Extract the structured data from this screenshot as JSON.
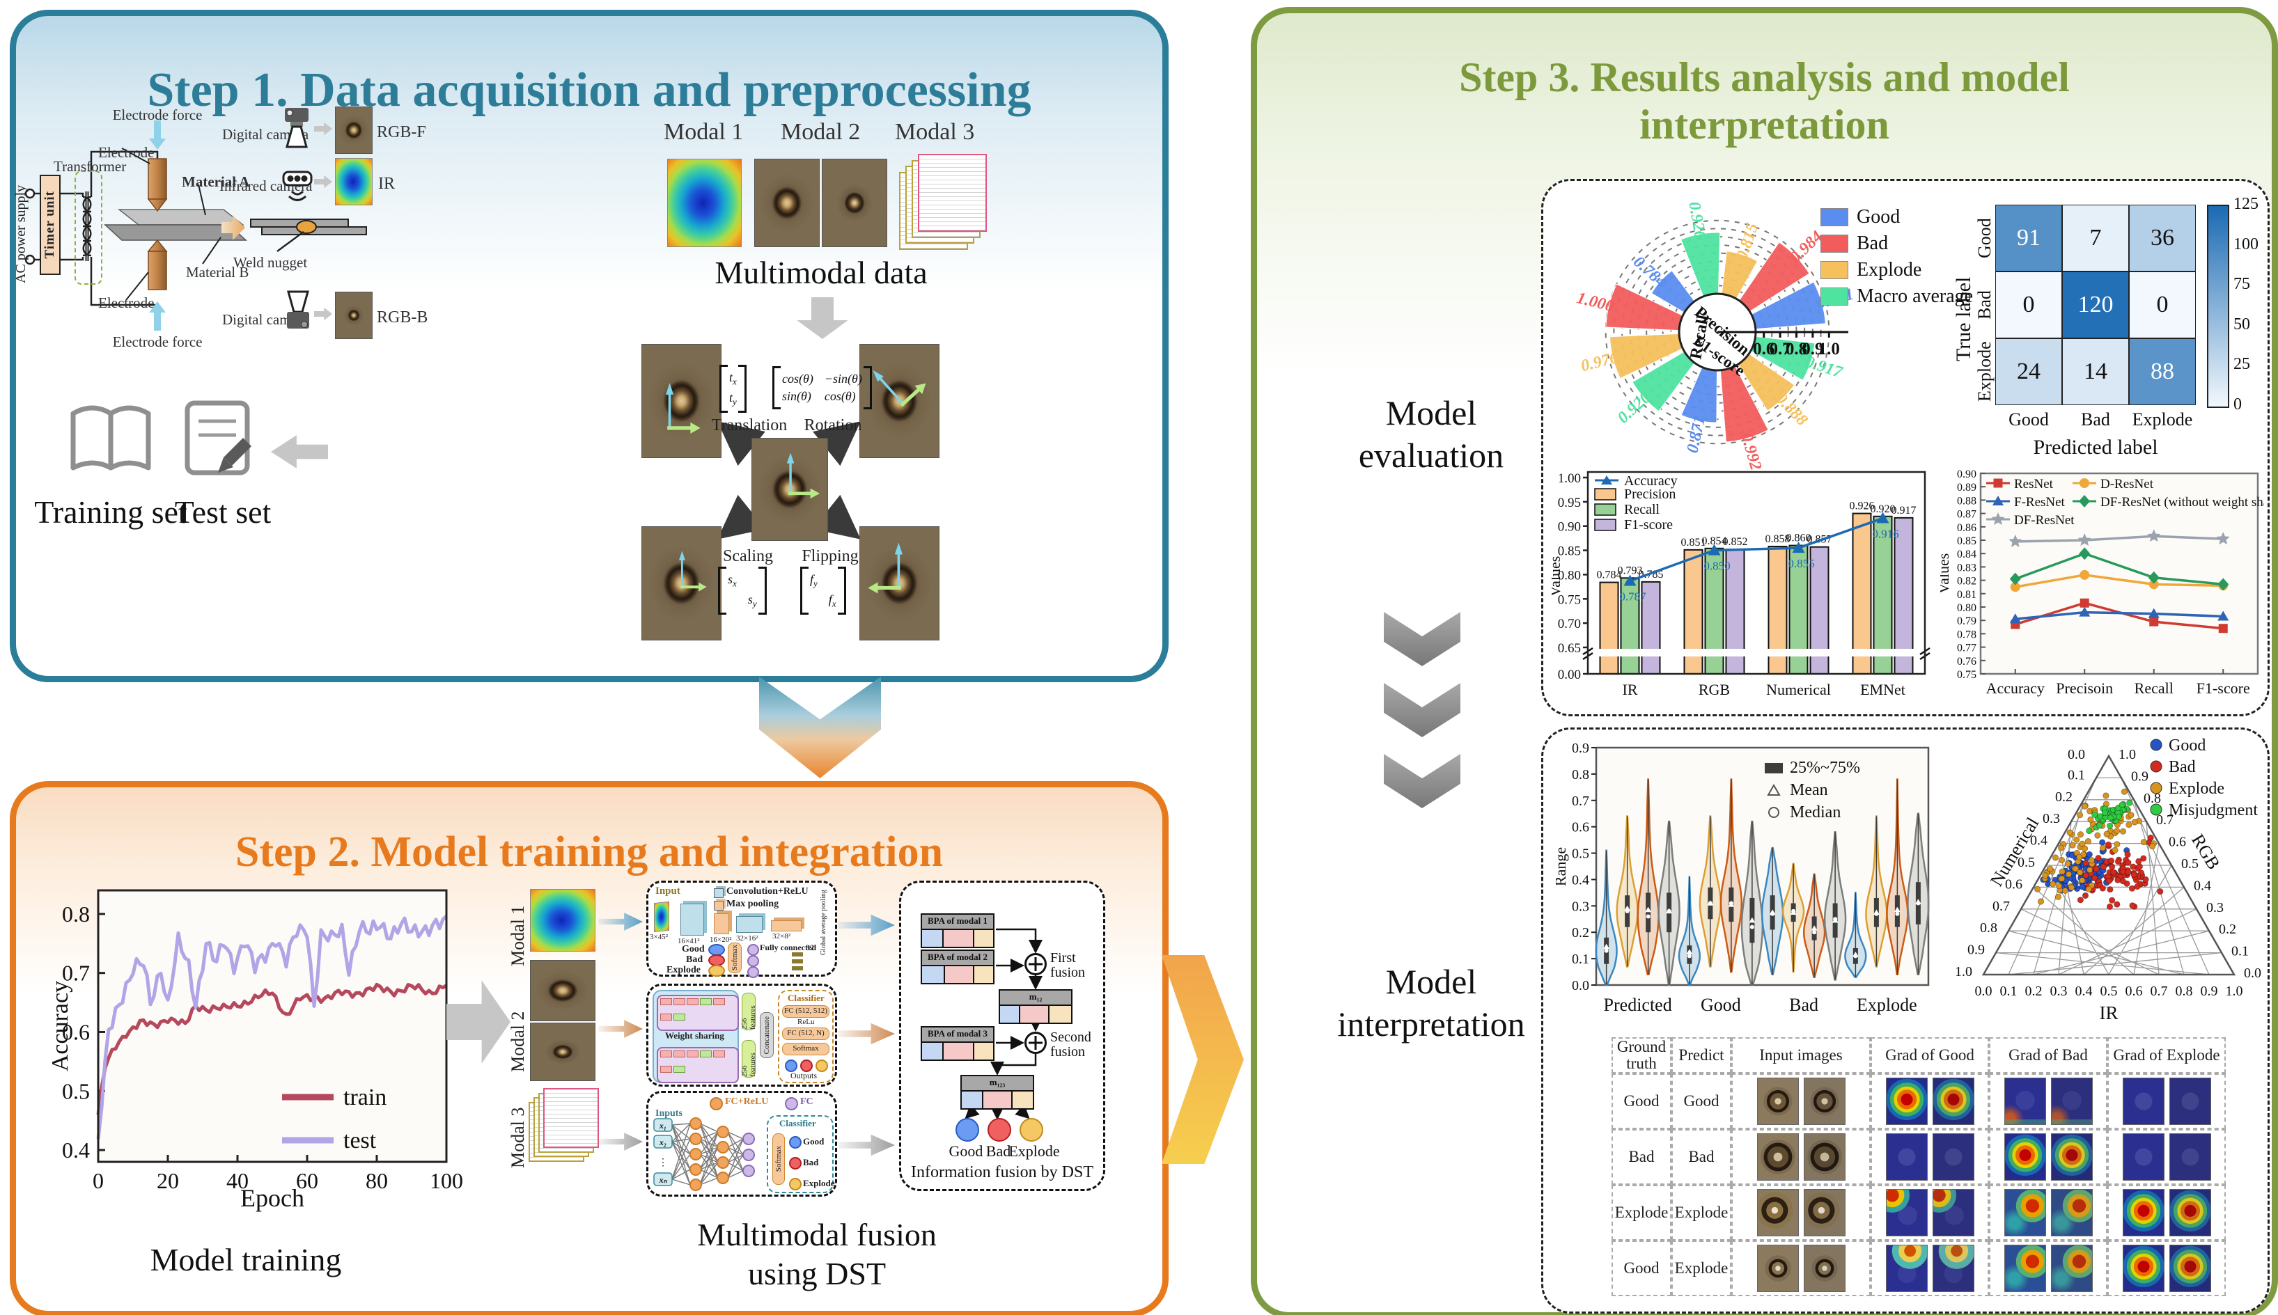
{
  "colors": {
    "step1_accent": "#2b7e99",
    "step2_accent": "#e87a1e",
    "step3_accent": "#7c9a3c",
    "good": "#5b8df0",
    "bad": "#f25c5c",
    "explode": "#f6c05c",
    "macro_average": "#4fe3a0",
    "train": "#b5485d",
    "test": "#b2a4e6"
  },
  "step1": {
    "title": "Step 1. Data acquisition and preprocessing",
    "schematic": {
      "electrode_force_top": "Electrode force",
      "electrode_top": "Electrode",
      "transformer": "Transformer",
      "timer_unit": "Timer unit",
      "ac_power": "AC power supply",
      "material_a": "Material A",
      "material_b": "Material B",
      "electrode_bottom": "Electrode",
      "electrode_force_bottom": "Electrode force",
      "weld_nugget": "Weld nugget"
    },
    "cameras": [
      {
        "label": "Digital camera",
        "output": "RGB-F"
      },
      {
        "label": "Infrared camera",
        "output": "IR"
      },
      {
        "label": "Digital camera",
        "output": "RGB-B"
      }
    ],
    "modal1": "Modal 1",
    "modal2": "Modal 2",
    "modal3": "Modal 3",
    "multimodal_caption": "Multimodal data",
    "augmentation": {
      "translation_label": "Translation",
      "rotation_label": "Rotation",
      "scaling_label": "Scaling",
      "flipping_label": "Flipping",
      "translation_cells": [
        {
          "b": "t",
          "s": "x"
        },
        {
          "b": "t",
          "s": "y"
        }
      ],
      "rotation_cells": [
        "cos(θ)",
        "−sin(θ)",
        "sin(θ)",
        "cos(θ)"
      ],
      "scaling_cells": [
        {
          "b": "s",
          "s": "x"
        },
        {
          "b": "s",
          "s": "y"
        }
      ],
      "flipping_cells": [
        {
          "b": "f",
          "s": "y"
        },
        {
          "b": "f",
          "s": "x"
        }
      ]
    },
    "training_set": "Training set",
    "test_set": "Test set"
  },
  "step2": {
    "title": "Step 2. Model training and integration",
    "model_training_caption": "Model training",
    "fusion_caption_line1": "Multimodal fusion",
    "fusion_caption_line2": "using DST",
    "modal1": "Modal 1",
    "modal2": "Modal 2",
    "modal3": "Modal 3",
    "cnn": {
      "input_label": "Input",
      "legend_conv": "Convolution+ReLU",
      "legend_pool": "Max pooling",
      "dims": [
        "3×45²",
        "16×41²",
        "16×20²",
        "32×16²",
        "32×8²"
      ],
      "gap_label": "Global average pooling",
      "fc_label": "Fully connected",
      "fc_dim": "32",
      "softmax": "Softmax",
      "class_good": "Good",
      "class_bad": "Bad",
      "class_explode": "Explode"
    },
    "resnet": {
      "weight_sharing": "Weight sharing",
      "features1": "256 features",
      "features2": "256 features",
      "concat": "Concatenate",
      "classifier": "Classifier",
      "fc1": "FC (512, 512)",
      "relu": "ReLu",
      "fc2": "FC (512, N)",
      "softmax": "Softmax",
      "outputs": "Outputs"
    },
    "mlp": {
      "legend_fcrelu": "FC+ReLU",
      "legend_fc": "FC",
      "inputs_label": "Inputs",
      "x1": "x₁",
      "x2": "x₂",
      "dots": "⋮",
      "xn": "xₙ",
      "classifier": "Classifier",
      "softmax": "Softmax",
      "class_good": "Good",
      "class_bad": "Bad",
      "class_explode": "Explode"
    },
    "dst": {
      "bpa1": "BPA of modal 1 (m₁)",
      "bpa2": "BPA of modal 2 (m₂)",
      "bpa3": "BPA of modal 3 (m₃)",
      "first_fusion": "First fusion",
      "second_fusion": "Second fusion",
      "m12": "m₁₂",
      "m123": "m₁₂₃",
      "class_good": "Good",
      "class_bad": "Bad",
      "class_explode": "Explode",
      "caption": "Information fusion by DST"
    }
  },
  "step3": {
    "title_line1": "Step 3. Results analysis and model",
    "title_line2": "interpretation",
    "evaluation_line1": "Model",
    "evaluation_line2": "evaluation",
    "interpretation_line1": "Model",
    "interpretation_line2": "interpretation"
  },
  "chart_data": {
    "training_curve": {
      "type": "line",
      "xlabel": "Epoch",
      "ylabel": "Accuracy",
      "xlim": [
        0,
        100
      ],
      "ylim": [
        0.38,
        0.84
      ],
      "xticks": [
        0,
        20,
        40,
        60,
        80,
        100
      ],
      "yticks": [
        0.4,
        0.5,
        0.6,
        0.7,
        0.8
      ],
      "legend_position": "lower right",
      "series": [
        {
          "name": "train",
          "color": "#b5485d",
          "keypoints": [
            [
              0,
              0.46
            ],
            [
              2,
              0.54
            ],
            [
              5,
              0.575
            ],
            [
              8,
              0.6
            ],
            [
              12,
              0.615
            ],
            [
              16,
              0.61
            ],
            [
              20,
              0.625
            ],
            [
              25,
              0.61
            ],
            [
              28,
              0.645
            ],
            [
              32,
              0.64
            ],
            [
              36,
              0.638
            ],
            [
              40,
              0.648
            ],
            [
              45,
              0.655
            ],
            [
              50,
              0.668
            ],
            [
              54,
              0.628
            ],
            [
              58,
              0.655
            ],
            [
              62,
              0.66
            ],
            [
              66,
              0.658
            ],
            [
              70,
              0.665
            ],
            [
              75,
              0.668
            ],
            [
              80,
              0.673
            ],
            [
              85,
              0.67
            ],
            [
              90,
              0.675
            ],
            [
              95,
              0.668
            ],
            [
              100,
              0.68
            ]
          ]
        },
        {
          "name": "test",
          "color": "#b2a4e6",
          "keypoints": [
            [
              0,
              0.41
            ],
            [
              3,
              0.6
            ],
            [
              6,
              0.655
            ],
            [
              10,
              0.703
            ],
            [
              13,
              0.712
            ],
            [
              15,
              0.652
            ],
            [
              18,
              0.713
            ],
            [
              20,
              0.645
            ],
            [
              23,
              0.748
            ],
            [
              26,
              0.712
            ],
            [
              28,
              0.652
            ],
            [
              31,
              0.752
            ],
            [
              34,
              0.71
            ],
            [
              36,
              0.752
            ],
            [
              39,
              0.718
            ],
            [
              42,
              0.757
            ],
            [
              45,
              0.703
            ],
            [
              48,
              0.73
            ],
            [
              51,
              0.765
            ],
            [
              54,
              0.718
            ],
            [
              57,
              0.765
            ],
            [
              60,
              0.776
            ],
            [
              62,
              0.652
            ],
            [
              64,
              0.765
            ],
            [
              67,
              0.752
            ],
            [
              70,
              0.772
            ],
            [
              72,
              0.712
            ],
            [
              75,
              0.778
            ],
            [
              78,
              0.763
            ],
            [
              81,
              0.782
            ],
            [
              84,
              0.77
            ],
            [
              87,
              0.782
            ],
            [
              90,
              0.763
            ],
            [
              93,
              0.775
            ],
            [
              96,
              0.786
            ],
            [
              100,
              0.78
            ]
          ]
        }
      ]
    },
    "polar_metrics": {
      "type": "polar_bar",
      "radial_ticks": [
        0.6,
        0.7,
        0.8,
        0.9,
        1.0
      ],
      "legend": [
        {
          "label": "Good",
          "color": "#5b8df0"
        },
        {
          "label": "Bad",
          "color": "#f25c5c"
        },
        {
          "label": "Explode",
          "color": "#f6c05c"
        },
        {
          "label": "Macro average",
          "color": "#4fe3a0"
        }
      ],
      "groups": [
        {
          "name": "Precision",
          "values": [
            [
              "Macro average",
              0.926
            ],
            [
              "Explode",
              0.815
            ],
            [
              "Bad",
              0.984
            ],
            [
              "Good",
              0.981
            ]
          ]
        },
        {
          "name": "F1-score",
          "values": [
            [
              "Macro average",
              0.917
            ],
            [
              "Explode",
              0.888
            ],
            [
              "Bad",
              0.992
            ],
            [
              "Good",
              0.871
            ]
          ]
        },
        {
          "name": "Recall",
          "values": [
            [
              "Macro average",
              0.92
            ],
            [
              "Explode",
              0.976
            ],
            [
              "Bad",
              1.0
            ],
            [
              "Good",
              0.784
            ]
          ]
        }
      ]
    },
    "confusion": {
      "type": "heatmap",
      "xlabel": "Predicted label",
      "ylabel": "True label",
      "categories": [
        "Good",
        "Bad",
        "Explode"
      ],
      "matrix": [
        [
          91,
          7,
          36
        ],
        [
          0,
          120,
          0
        ],
        [
          24,
          14,
          88
        ]
      ],
      "vmax": 125,
      "colorbar_ticks": [
        0,
        25,
        50,
        75,
        100,
        125
      ],
      "colormap": [
        "#f2f8fd",
        "#1a6ab3"
      ]
    },
    "modality_bars": {
      "type": "bar_line",
      "ylabel": "Values",
      "categories": [
        "IR",
        "RGB",
        "Numerical",
        "EMNet"
      ],
      "ytick_values": [
        0,
        0.65,
        0.7,
        0.75,
        0.8,
        0.85,
        0.9,
        0.95,
        1.0
      ],
      "axis_break": true,
      "series": [
        {
          "name": "Precision",
          "color": "#fac78f",
          "values": [
            0.784,
            0.851,
            0.858,
            0.926
          ]
        },
        {
          "name": "Recall",
          "color": "#97d195",
          "values": [
            0.793,
            0.854,
            0.86,
            0.92
          ]
        },
        {
          "name": "F1-score",
          "color": "#c3b5dc",
          "values": [
            0.785,
            0.852,
            0.857,
            0.917
          ]
        }
      ],
      "line_series": {
        "name": "Accuracy",
        "color": "#1b6ab2",
        "values": [
          0.787,
          0.85,
          0.855,
          0.916
        ]
      }
    },
    "model_lines": {
      "type": "line",
      "ylabel": "Values",
      "ylim": [
        0.75,
        0.9
      ],
      "ytick_step": 0.01,
      "categories": [
        "Accuracy",
        "Precisoin",
        "Recall",
        "F1-score"
      ],
      "series": [
        {
          "name": "ResNet",
          "color": "#cf3a32",
          "marker": "square",
          "values": [
            0.787,
            0.803,
            0.789,
            0.784
          ]
        },
        {
          "name": "D-ResNet",
          "color": "#f0a73a",
          "marker": "circle",
          "values": [
            0.815,
            0.824,
            0.817,
            0.816
          ]
        },
        {
          "name": "F-ResNet",
          "color": "#2f63b6",
          "marker": "triangle",
          "values": [
            0.791,
            0.796,
            0.795,
            0.793
          ]
        },
        {
          "name": "DF-ResNet (without weight sharing)",
          "color": "#27995c",
          "marker": "diamond",
          "values": [
            0.821,
            0.84,
            0.822,
            0.817
          ]
        },
        {
          "name": "DF-ResNet",
          "color": "#9aa2ad",
          "marker": "star",
          "values": [
            0.849,
            0.85,
            0.853,
            0.851
          ]
        }
      ]
    },
    "violin": {
      "type": "violin",
      "ylabel": "Range",
      "ylim": [
        0,
        0.9
      ],
      "categories": [
        "Predicted",
        "Good",
        "Bad",
        "Explode"
      ],
      "legend": [
        "25%~75%",
        "Mean",
        "Median"
      ],
      "colors": [
        "#3a87c2",
        "#dd9f33",
        "#cc5a14",
        "#7d7d7d"
      ],
      "groups": [
        {
          "name": "Predicted",
          "stats": [
            [
              0.0,
              0.08,
              0.13,
              0.145,
              0.18,
              0.51
            ],
            [
              0.07,
              0.22,
              0.28,
              0.29,
              0.34,
              0.64
            ],
            [
              0.04,
              0.2,
              0.26,
              0.285,
              0.35,
              0.78
            ],
            [
              0.0,
              0.2,
              0.28,
              0.28,
              0.35,
              0.62
            ]
          ]
        },
        {
          "name": "Good",
          "stats": [
            [
              0.0,
              0.08,
              0.11,
              0.125,
              0.15,
              0.41
            ],
            [
              0.07,
              0.25,
              0.31,
              0.31,
              0.37,
              0.64
            ],
            [
              0.05,
              0.24,
              0.31,
              0.305,
              0.37,
              0.78
            ],
            [
              0.0,
              0.16,
              0.22,
              0.245,
              0.33,
              0.62
            ]
          ]
        },
        {
          "name": "Bad",
          "stats": [
            [
              0.04,
              0.21,
              0.27,
              0.275,
              0.34,
              0.52
            ],
            [
              0.05,
              0.24,
              0.28,
              0.275,
              0.31,
              0.46
            ],
            [
              0.03,
              0.17,
              0.2,
              0.215,
              0.26,
              0.42
            ],
            [
              0.02,
              0.18,
              0.25,
              0.245,
              0.31,
              0.58
            ]
          ]
        },
        {
          "name": "Explode",
          "stats": [
            [
              0.03,
              0.08,
              0.11,
              0.115,
              0.14,
              0.35
            ],
            [
              0.07,
              0.22,
              0.27,
              0.275,
              0.33,
              0.64
            ],
            [
              0.04,
              0.22,
              0.27,
              0.285,
              0.34,
              0.78
            ],
            [
              0.04,
              0.23,
              0.31,
              0.315,
              0.39,
              0.65
            ]
          ]
        }
      ]
    },
    "ternary": {
      "type": "ternary_scatter",
      "axes": {
        "bottom": "IR",
        "right": "RGB",
        "left": "Numerical"
      },
      "tick_step": 0.1,
      "legend": [
        {
          "label": "Good",
          "color": "#2553c8"
        },
        {
          "label": "Bad",
          "color": "#d42a1e"
        },
        {
          "label": "Explode",
          "color": "#d9941f"
        },
        {
          "label": "Misjudgment",
          "color": "#2ecc40"
        }
      ],
      "clusters": [
        {
          "label": "Good",
          "color": "#2553c8",
          "count": 110,
          "center": [
            0.16,
            0.47,
            0.37
          ],
          "spread": 0.055
        },
        {
          "label": "Bad",
          "color": "#d42a1e",
          "count": 85,
          "center": [
            0.3,
            0.47,
            0.23
          ],
          "spread": 0.075
        },
        {
          "label": "Explode",
          "color": "#d9941f",
          "count": 60,
          "center": [
            0.15,
            0.66,
            0.19
          ],
          "spread": 0.075
        },
        {
          "label": "Explode",
          "color": "#d9941f",
          "count": 30,
          "center": [
            0.12,
            0.44,
            0.44
          ],
          "spread": 0.06
        },
        {
          "label": "Misjudgment",
          "color": "#2ecc40",
          "count": 40,
          "center": [
            0.14,
            0.74,
            0.12
          ],
          "spread": 0.035
        }
      ]
    },
    "gradcam": {
      "type": "table",
      "headers": [
        "Ground truth",
        "Predict",
        "Input images",
        "Grad of Good",
        "Grad of Bad",
        "Grad of Explode"
      ],
      "rows": [
        {
          "ground_truth": "Good",
          "predict": "Good",
          "input": "good",
          "grads": [
            "hot",
            "cold-edge",
            "cold"
          ]
        },
        {
          "ground_truth": "Bad",
          "predict": "Bad",
          "input": "bad",
          "grads": [
            "cold",
            "hot",
            "cold"
          ]
        },
        {
          "ground_truth": "Explode",
          "predict": "Explode",
          "input": "explode",
          "grads": [
            "corner",
            "mixed",
            "hot"
          ]
        },
        {
          "ground_truth": "Good",
          "predict": "Explode",
          "input": "good2",
          "grads": [
            "top",
            "mixed",
            "hot"
          ]
        }
      ]
    }
  }
}
